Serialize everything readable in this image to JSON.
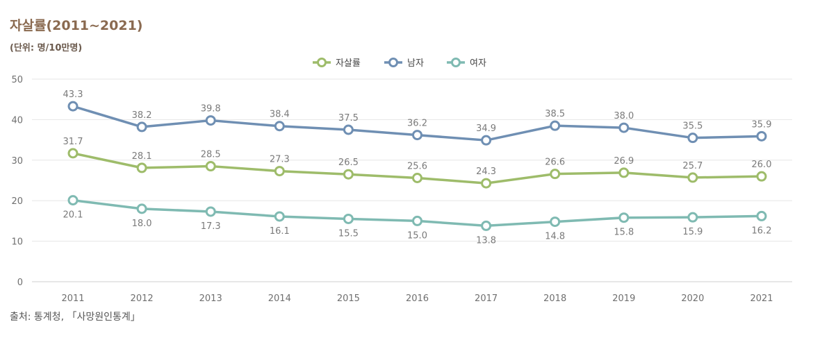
{
  "title": "자살률(2011~2021)",
  "unit": "(단위: 명/10만명)",
  "source": "출처: 통계청, 「사망원인통계」",
  "chart_data": {
    "type": "line",
    "title": "자살률(2011~2021)",
    "xlabel": "",
    "ylabel": "",
    "categories": [
      "2011",
      "2012",
      "2013",
      "2014",
      "2015",
      "2016",
      "2017",
      "2018",
      "2019",
      "2020",
      "2021"
    ],
    "ylim": [
      0,
      50
    ],
    "yticks": [
      0,
      10,
      20,
      30,
      40,
      50
    ],
    "grid": true,
    "legend_position": "top-center",
    "series": [
      {
        "name": "자살률",
        "color": "#9ebc6a",
        "values": [
          31.7,
          28.1,
          28.5,
          27.3,
          26.5,
          25.6,
          24.3,
          26.6,
          26.9,
          25.7,
          26.0
        ]
      },
      {
        "name": "남자",
        "color": "#6f8fb3",
        "values": [
          43.3,
          38.2,
          39.8,
          38.4,
          37.5,
          36.2,
          34.9,
          38.5,
          38.0,
          35.5,
          35.9
        ]
      },
      {
        "name": "여자",
        "color": "#7fbab2",
        "values": [
          20.1,
          18.0,
          17.3,
          16.1,
          15.5,
          15.0,
          13.8,
          14.8,
          15.8,
          15.9,
          16.2
        ]
      }
    ]
  }
}
